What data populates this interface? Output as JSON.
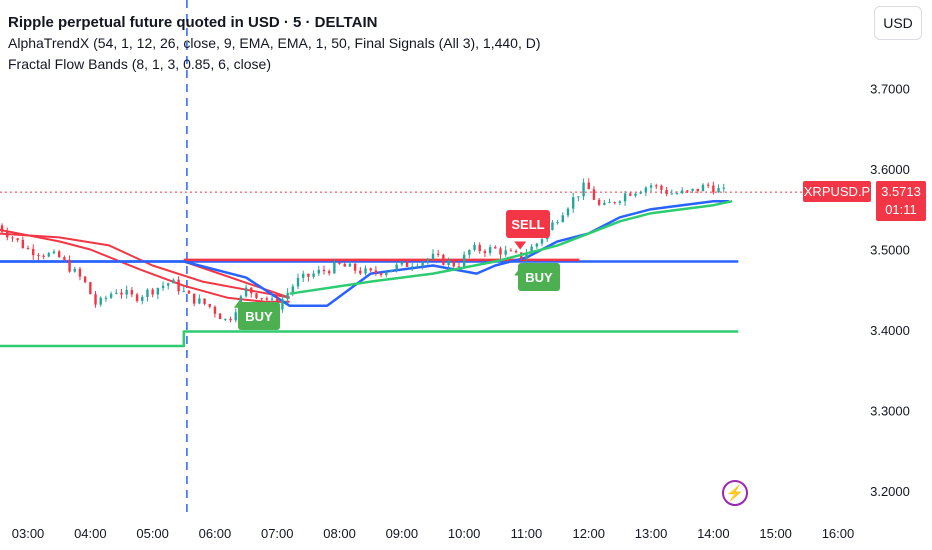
{
  "header": {
    "title": "Ripple perpetual future quoted in USD · 5 · DELTAIN",
    "indicators": [
      "AlphaTrendX (54, 1, 12, 26, close, 9, EMA, EMA, 1, 50, Final Signals (All 3), 1,440, D)",
      "Fractal Flow Bands (8, 1, 3, 0.85, 6, close)"
    ]
  },
  "currency_button": "USD",
  "price_tag": {
    "symbol": "XRPUSD.P",
    "price": "3.5713",
    "countdown": "01:11"
  },
  "signals": {
    "buy_label": "BUY",
    "sell_label": "SELL"
  },
  "colors": {
    "up": "#26a69a",
    "down": "#f23645",
    "blue_band": "#2962ff",
    "red_band": "#f23645",
    "green_line": "#2ecc71",
    "dashed_marker": "#2962ff"
  },
  "chart_data": {
    "type": "line",
    "title": "Ripple perpetual future quoted in USD · 5 · DELTAIN",
    "x_ticks": [
      "03:00",
      "04:00",
      "05:00",
      "06:00",
      "07:00",
      "08:00",
      "09:00",
      "10:00",
      "11:00",
      "12:00",
      "13:00",
      "14:00",
      "15:00",
      "16:00"
    ],
    "y_ticks": [
      "3.7000",
      "3.6000",
      "3.5000",
      "3.4000",
      "3.3000",
      "3.2000"
    ],
    "ylim": [
      3.17,
      3.81
    ],
    "xlim_hours": [
      2.55,
      16.45
    ],
    "grid": false,
    "last_price": 3.5713,
    "price_series": {
      "name": "XRPUSD.P",
      "x": [
        2.5,
        3.0,
        3.5,
        3.9,
        4.1,
        4.4,
        4.7,
        5.0,
        5.3,
        5.6,
        5.9,
        6.2,
        6.5,
        6.8,
        7.0,
        7.3,
        7.6,
        8.0,
        8.5,
        9.0,
        9.5,
        9.9,
        10.1,
        10.5,
        10.9,
        11.2,
        11.6,
        11.95,
        12.2,
        12.6,
        13.0,
        13.3,
        13.6,
        13.9,
        14.2
      ],
      "values": [
        3.53,
        3.5,
        3.49,
        3.46,
        3.43,
        3.45,
        3.44,
        3.45,
        3.46,
        3.44,
        3.43,
        3.41,
        3.45,
        3.44,
        3.43,
        3.46,
        3.47,
        3.48,
        3.47,
        3.48,
        3.49,
        3.48,
        3.5,
        3.5,
        3.49,
        3.51,
        3.55,
        3.58,
        3.55,
        3.57,
        3.58,
        3.57,
        3.57,
        3.58,
        3.57
      ]
    },
    "blue_band": {
      "x": [
        2.5,
        5.5,
        6.5,
        7.2,
        7.8,
        8.5,
        9.5,
        10.2,
        10.5,
        11.0,
        11.5,
        12.0,
        12.5,
        13.0,
        13.5,
        14.0,
        14.25
      ],
      "values": [
        3.485,
        3.485,
        3.465,
        3.43,
        3.43,
        3.47,
        3.48,
        3.47,
        3.48,
        3.49,
        3.51,
        3.52,
        3.54,
        3.55,
        3.555,
        3.56,
        3.56
      ]
    },
    "blue_flat": {
      "x": [
        5.5,
        14.4
      ],
      "value": 3.485
    },
    "red_bands": [
      {
        "name": "red1",
        "x": [
          2.5,
          3.5,
          4.3,
          5.0,
          5.8,
          6.5,
          7.2
        ],
        "values": [
          3.52,
          3.515,
          3.505,
          3.48,
          3.46,
          3.45,
          3.44
        ]
      },
      {
        "name": "red2",
        "x": [
          2.5,
          3.5,
          4.0,
          4.8,
          5.5,
          6.2,
          6.8,
          7.2
        ],
        "values": [
          3.525,
          3.51,
          3.5,
          3.475,
          3.455,
          3.44,
          3.435,
          3.435
        ]
      },
      {
        "name": "red3",
        "x": [
          3.5,
          5.5,
          7.2
        ],
        "values": [
          3.485,
          3.485,
          3.44
        ]
      }
    ],
    "red_flat": {
      "x": [
        5.5,
        11.85
      ],
      "value": 3.487
    },
    "green_trend": {
      "x": [
        7.2,
        8.5,
        9.5,
        10.5,
        11.0,
        11.5,
        12.0,
        12.5,
        13.0,
        13.5,
        14.0,
        14.3
      ],
      "values": [
        3.445,
        3.46,
        3.47,
        3.485,
        3.495,
        3.505,
        3.52,
        3.535,
        3.545,
        3.55,
        3.555,
        3.56
      ]
    },
    "green_floor": {
      "x": [
        2.5,
        5.5,
        5.5,
        14.4
      ],
      "values": [
        3.38,
        3.38,
        3.398,
        3.398
      ]
    },
    "dashed_marker_x": 5.55,
    "signal_points": [
      {
        "label": "BUY",
        "x": 6.4,
        "price": 3.44
      },
      {
        "label": "SELL",
        "x": 10.9,
        "price": 3.5
      },
      {
        "label": "BUY",
        "x": 10.9,
        "price": 3.48
      }
    ]
  }
}
